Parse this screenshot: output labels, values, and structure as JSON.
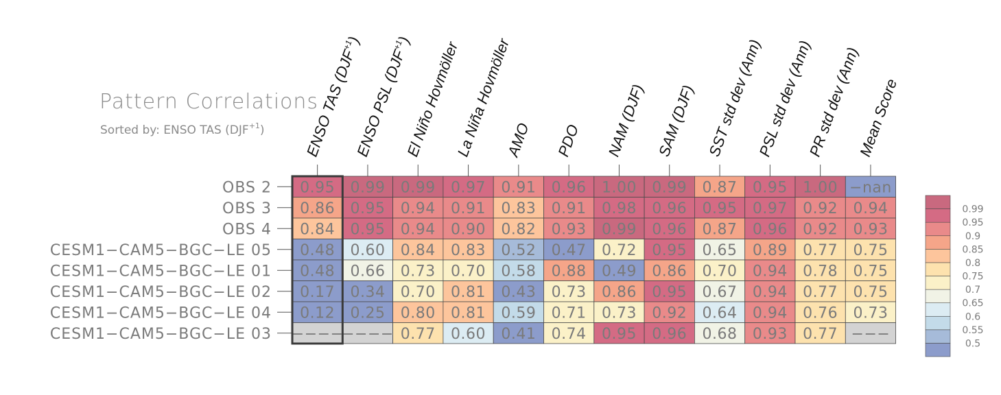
{
  "header": {
    "title": "Pattern Correlations",
    "sort_label": "Sorted by: ENSO TAS (DJF",
    "sort_sup": "+1",
    "sort_close": ")"
  },
  "chart_data": {
    "type": "heatmap",
    "title": "Pattern Correlations",
    "subtitle": "Sorted by: ENSO TAS (DJF+1)",
    "columns": [
      {
        "main": "ENSO TAS (DJF",
        "sup": "+1",
        "tail": ")"
      },
      {
        "main": "ENSO PSL (DJF",
        "sup": "+1",
        "tail": ")"
      },
      {
        "main": "El Niño Hovmöller",
        "sup": "",
        "tail": ""
      },
      {
        "main": "La Niña Hovmöller",
        "sup": "",
        "tail": ""
      },
      {
        "main": "AMO",
        "sup": "",
        "tail": ""
      },
      {
        "main": "PDO",
        "sup": "",
        "tail": ""
      },
      {
        "main": "NAM (DJF)",
        "sup": "",
        "tail": ""
      },
      {
        "main": "SAM (DJF)",
        "sup": "",
        "tail": ""
      },
      {
        "main": "SST std dev (Ann)",
        "sup": "",
        "tail": ""
      },
      {
        "main": "PSL std dev (Ann)",
        "sup": "",
        "tail": ""
      },
      {
        "main": "PR std dev (Ann)",
        "sup": "",
        "tail": ""
      },
      {
        "main": "Mean Score",
        "sup": "",
        "tail": ""
      }
    ],
    "rows": [
      "OBS 2",
      "OBS 3",
      "OBS 4",
      "CESM1-CAM5-BGC-LE 05",
      "CESM1-CAM5-BGC-LE 01",
      "CESM1-CAM5-BGC-LE 02",
      "CESM1-CAM5-BGC-LE 04",
      "CESM1-CAM5-BGC-LE 03"
    ],
    "values": [
      [
        0.95,
        0.99,
        0.99,
        0.97,
        0.91,
        0.96,
        1.0,
        0.99,
        0.87,
        0.95,
        1.0,
        null
      ],
      [
        0.86,
        0.95,
        0.94,
        0.91,
        0.83,
        0.91,
        0.98,
        0.96,
        0.95,
        0.97,
        0.92,
        0.94
      ],
      [
        0.84,
        0.95,
        0.94,
        0.9,
        0.82,
        0.93,
        0.99,
        0.96,
        0.87,
        0.96,
        0.92,
        0.93
      ],
      [
        0.48,
        0.6,
        0.84,
        0.83,
        0.52,
        0.47,
        0.72,
        0.95,
        0.65,
        0.89,
        0.77,
        0.75
      ],
      [
        0.48,
        0.66,
        0.73,
        0.7,
        0.58,
        0.88,
        0.49,
        0.86,
        0.7,
        0.94,
        0.78,
        0.75
      ],
      [
        0.17,
        0.34,
        0.7,
        0.81,
        0.43,
        0.73,
        0.86,
        0.95,
        0.67,
        0.94,
        0.77,
        0.75
      ],
      [
        0.12,
        0.25,
        0.8,
        0.81,
        0.59,
        0.71,
        0.73,
        0.92,
        0.64,
        0.94,
        0.76,
        0.73
      ],
      [
        null,
        null,
        0.77,
        0.6,
        0.41,
        0.74,
        0.95,
        0.96,
        0.68,
        0.93,
        0.77,
        null
      ]
    ],
    "display": [
      [
        "0.95",
        "0.99",
        "0.99",
        "0.97",
        "0.91",
        "0.96",
        "1.00",
        "0.99",
        "0.87",
        "0.95",
        "1.00",
        "−nan"
      ],
      [
        "0.86",
        "0.95",
        "0.94",
        "0.91",
        "0.83",
        "0.91",
        "0.98",
        "0.96",
        "0.95",
        "0.97",
        "0.92",
        "0.94"
      ],
      [
        "0.84",
        "0.95",
        "0.94",
        "0.90",
        "0.82",
        "0.93",
        "0.99",
        "0.96",
        "0.87",
        "0.96",
        "0.92",
        "0.93"
      ],
      [
        "0.48",
        "0.60",
        "0.84",
        "0.83",
        "0.52",
        "0.47",
        "0.72",
        "0.95",
        "0.65",
        "0.89",
        "0.77",
        "0.75"
      ],
      [
        "0.48",
        "0.66",
        "0.73",
        "0.70",
        "0.58",
        "0.88",
        "0.49",
        "0.86",
        "0.70",
        "0.94",
        "0.78",
        "0.75"
      ],
      [
        "0.17",
        "0.34",
        "0.70",
        "0.81",
        "0.43",
        "0.73",
        "0.86",
        "0.95",
        "0.67",
        "0.94",
        "0.77",
        "0.75"
      ],
      [
        "0.12",
        "0.25",
        "0.80",
        "0.81",
        "0.59",
        "0.71",
        "0.73",
        "0.92",
        "0.64",
        "0.94",
        "0.76",
        "0.73"
      ],
      [
        "−−−−",
        "−−−−",
        "0.77",
        "0.60",
        "0.41",
        "0.74",
        "0.95",
        "0.96",
        "0.68",
        "0.93",
        "0.77",
        "−−−"
      ]
    ],
    "highlight_column": 0,
    "missing_color": "#d3d3d3",
    "colorbar": {
      "levels": [
        0.5,
        0.55,
        0.6,
        0.65,
        0.7,
        0.75,
        0.8,
        0.85,
        0.9,
        0.95,
        0.99
      ],
      "labels": [
        "0.5",
        "0.55",
        "0.6",
        "0.65",
        "0.7",
        "0.75",
        "0.8",
        "0.85",
        "0.9",
        "0.95",
        "0.99"
      ],
      "colors": [
        "#8c9ccb",
        "#a6bbd9",
        "#c3dbe9",
        "#dcecf3",
        "#f1f3e6",
        "#fbf1c8",
        "#fde2ae",
        "#fdc59c",
        "#f5a589",
        "#e98a8a",
        "#d46b84",
        "#c9697f"
      ]
    }
  }
}
